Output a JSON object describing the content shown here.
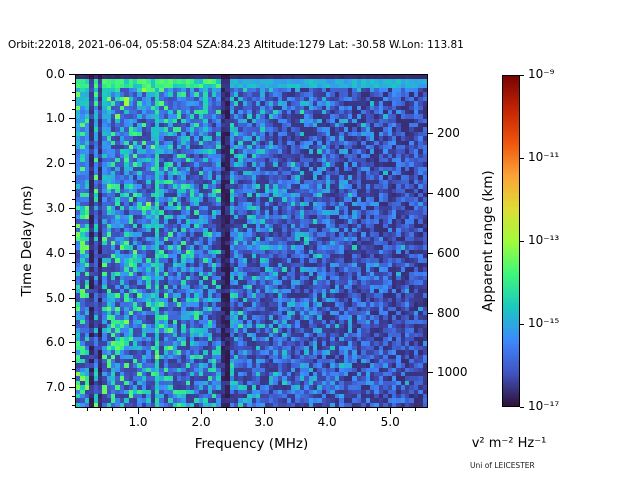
{
  "figure": {
    "title": "Orbit:22018, 2021-06-04, 05:58:04 SZA:84.23 Altitude:1279 Lat: -30.58 W.Lon: 113.81",
    "credit": "Uni of LEICESTER"
  },
  "chart_data": {
    "type": "heatmap",
    "title": "Orbit:22018, 2021-06-04, 05:58:04 SZA:84.23 Altitude:1279 Lat: -30.58 W.Lon: 113.81",
    "xlabel": "Frequency (MHz)",
    "ylabel": "Time Delay (ms)",
    "ylabel_right": "Apparent range (km)",
    "colorbar_label": "v² m⁻² Hz⁻¹",
    "xlim": [
      0.0,
      5.6
    ],
    "ylim": [
      0.0,
      7.45
    ],
    "y_axis_inverted_note": "time delay increases downward",
    "x_ticks": [
      {
        "value": 1.0,
        "label": "1.0"
      },
      {
        "value": 2.0,
        "label": "2.0"
      },
      {
        "value": 3.0,
        "label": "3.0"
      },
      {
        "value": 4.0,
        "label": "4.0"
      },
      {
        "value": 5.0,
        "label": "5.0"
      }
    ],
    "x_minor_step": 0.2,
    "y_ticks": [
      {
        "value": 0.0,
        "label": "0.0"
      },
      {
        "value": 1.0,
        "label": "1.0"
      },
      {
        "value": 2.0,
        "label": "2.0"
      },
      {
        "value": 3.0,
        "label": "3.0"
      },
      {
        "value": 4.0,
        "label": "4.0"
      },
      {
        "value": 5.0,
        "label": "5.0"
      },
      {
        "value": 6.0,
        "label": "6.0"
      },
      {
        "value": 7.0,
        "label": "7.0"
      }
    ],
    "y_minor_step": 0.2,
    "right_axis": {
      "km_per_ms": 150,
      "ticks": [
        {
          "km": 200,
          "label": "200"
        },
        {
          "km": 400,
          "label": "400"
        },
        {
          "km": 600,
          "label": "600"
        },
        {
          "km": 800,
          "label": "800"
        },
        {
          "km": 1000,
          "label": "1000"
        }
      ]
    },
    "colorbar": {
      "scale": "log10",
      "top_exp": -9,
      "bottom_exp": -17,
      "ticks": [
        {
          "exp": -9,
          "label": "10⁻⁹"
        },
        {
          "exp": -11,
          "label": "10⁻¹¹"
        },
        {
          "exp": -13,
          "label": "10⁻¹³"
        },
        {
          "exp": -15,
          "label": "10⁻¹⁵"
        },
        {
          "exp": -17,
          "label": "10⁻¹⁷"
        }
      ],
      "colormap": "turbo",
      "colormap_stops": [
        [
          0.0,
          "#30123b"
        ],
        [
          0.1,
          "#4255c4"
        ],
        [
          0.2,
          "#3d8bfd"
        ],
        [
          0.3,
          "#1dcac0"
        ],
        [
          0.4,
          "#40f77a"
        ],
        [
          0.5,
          "#a2fc3c"
        ],
        [
          0.6,
          "#e1dc37"
        ],
        [
          0.7,
          "#fca338"
        ],
        [
          0.8,
          "#ef550f"
        ],
        [
          0.9,
          "#c32503"
        ],
        [
          1.0,
          "#7a0403"
        ]
      ]
    },
    "heatmap": {
      "n_freq_bins": 80,
      "n_delay_bins": 76,
      "seed": 42,
      "description": "radar sounder ionogram: blue speckle noise fading darker toward high frequency",
      "features": [
        {
          "name": "blank-first-row",
          "delay_max_ms": 0.1
        },
        {
          "name": "direct-signal-band",
          "delay_ms": [
            0.1,
            0.32
          ]
        },
        {
          "name": "strong-low-freq-region",
          "freq_max_mhz": 0.55
        },
        {
          "name": "dark-stripe",
          "freq_mhz": 0.27,
          "width_mhz": 0.06
        },
        {
          "name": "dark-stripe",
          "freq_mhz": 0.41,
          "width_mhz": 0.05
        },
        {
          "name": "cyan-line",
          "freq_mhz": 1.32,
          "width_mhz": 0.06
        },
        {
          "name": "dark-band",
          "freq_mhz": 2.39,
          "width_mhz": 0.14
        }
      ]
    }
  }
}
